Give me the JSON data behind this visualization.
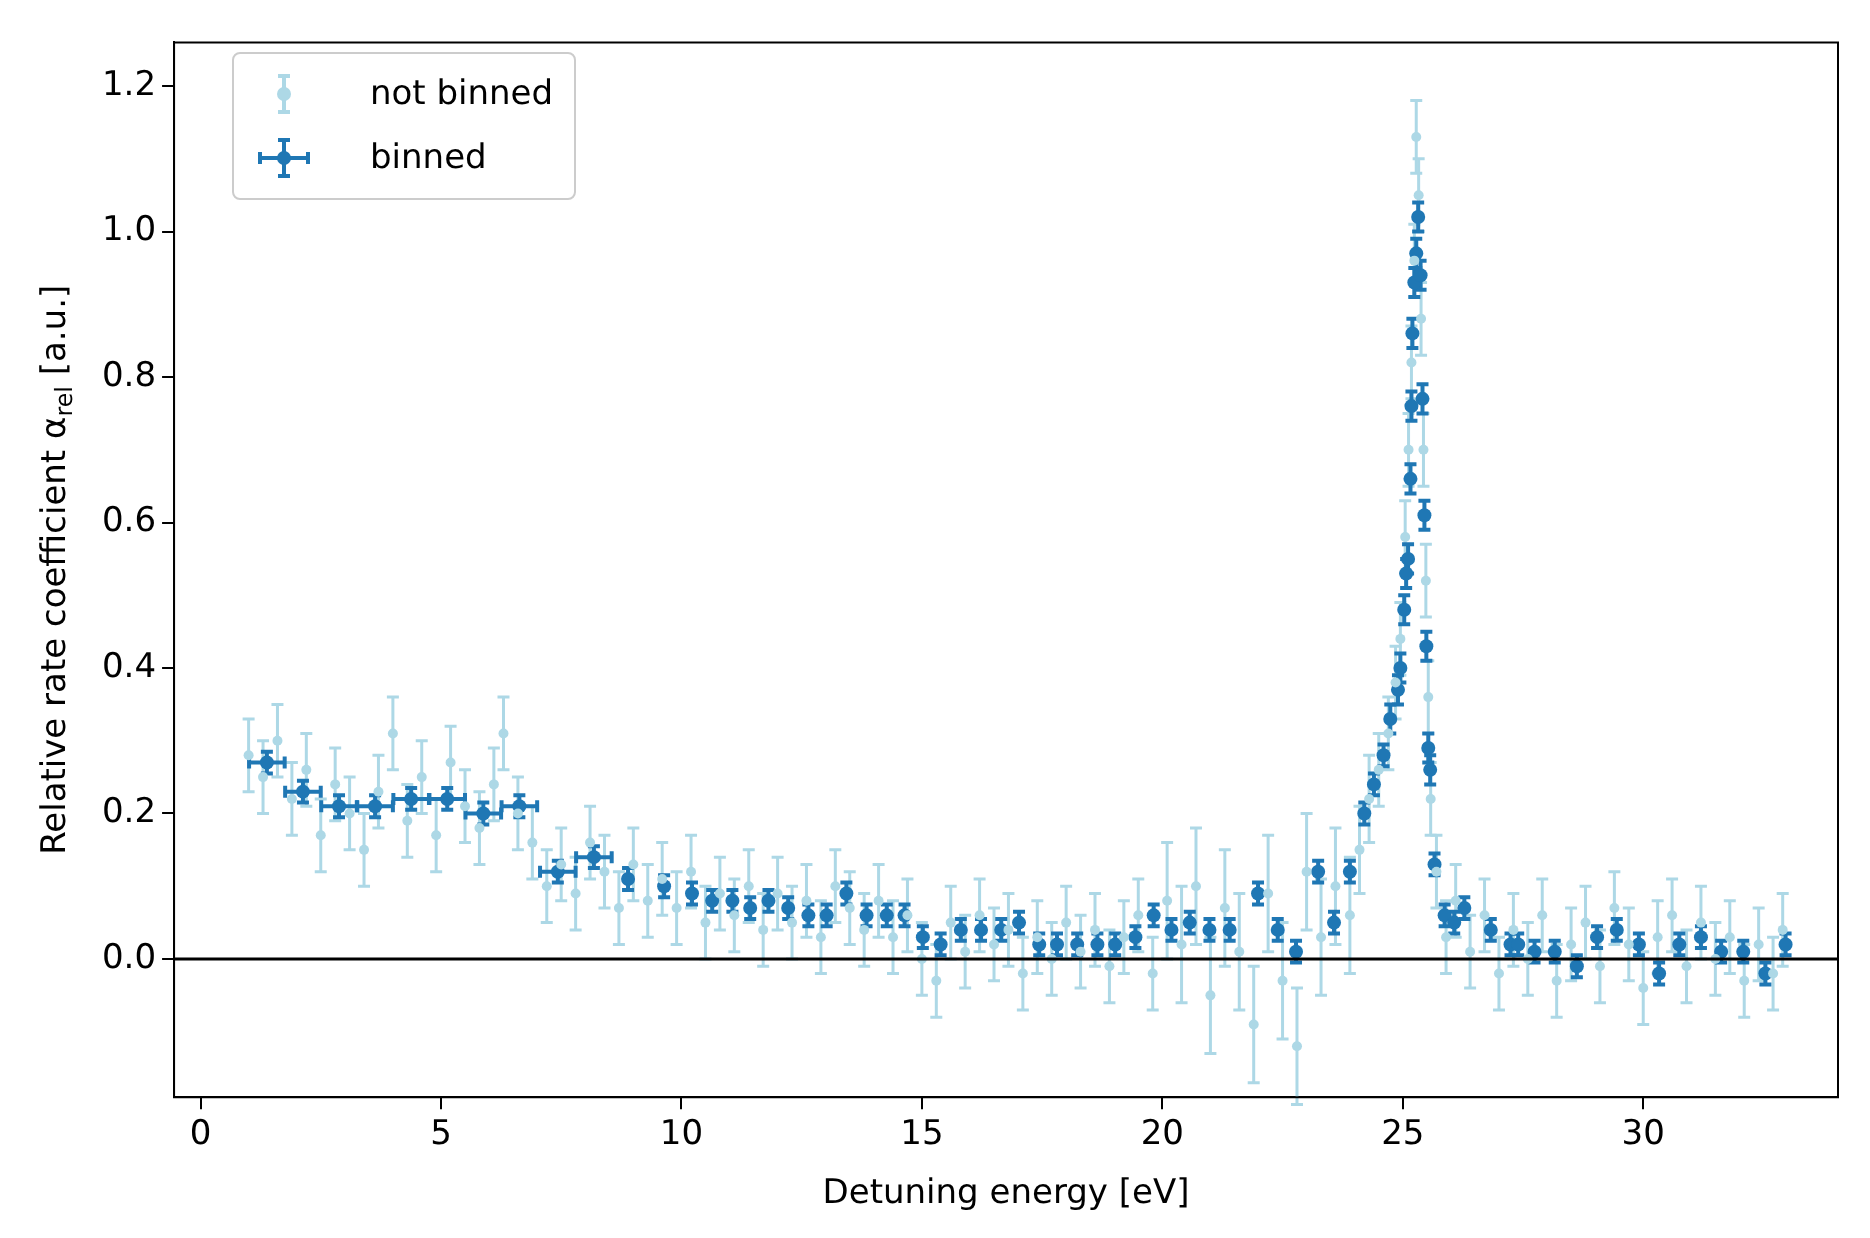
{
  "chart_data": {
    "type": "scatter",
    "xlabel": "Detuning energy [eV]",
    "ylabel": "Relative rate coefficient α$_{rel}$ [a.u.]",
    "xlim": [
      -0.55,
      34.05
    ],
    "ylim": [
      -0.19,
      1.26
    ],
    "xticks": [
      0,
      5,
      10,
      15,
      20,
      25,
      30
    ],
    "yticks": [
      {
        "value": 0,
        "label": "0.0"
      },
      {
        "value": 0.2,
        "label": "0.2"
      },
      {
        "value": 0.4,
        "label": "0.4"
      },
      {
        "value": 0.6,
        "label": "0.6"
      },
      {
        "value": 0.8,
        "label": "0.8"
      },
      {
        "value": 1.0,
        "label": "1.0"
      },
      {
        "value": 1.2,
        "label": "1.2"
      }
    ],
    "grid": false,
    "legend": "top left",
    "marker": "circle",
    "ref_lines": [
      {
        "axis": "y",
        "value": 0,
        "color": "#000000"
      }
    ],
    "series": [
      {
        "name": "not binned",
        "color": "#add8e6",
        "x": [
          1.0,
          1.3,
          1.6,
          1.9,
          2.2,
          2.5,
          2.8,
          3.1,
          3.4,
          3.7,
          4.0,
          4.3,
          4.6,
          4.9,
          5.2,
          5.5,
          5.8,
          6.1,
          6.3,
          6.6,
          6.9,
          7.2,
          7.5,
          7.8,
          8.1,
          8.4,
          8.7,
          9.0,
          9.3,
          9.6,
          9.9,
          10.2,
          10.5,
          10.8,
          11.1,
          11.4,
          11.7,
          12.0,
          12.3,
          12.6,
          12.9,
          13.2,
          13.5,
          13.8,
          14.1,
          14.4,
          14.7,
          15.0,
          15.3,
          15.6,
          15.9,
          16.2,
          16.5,
          16.8,
          17.1,
          17.4,
          17.7,
          18.0,
          18.3,
          18.6,
          18.9,
          19.2,
          19.5,
          19.8,
          20.1,
          20.4,
          20.7,
          21.0,
          21.3,
          21.6,
          21.9,
          22.2,
          22.5,
          22.8,
          23.0,
          23.3,
          23.6,
          23.9,
          24.1,
          24.3,
          24.5,
          24.7,
          24.85,
          24.95,
          25.05,
          25.12,
          25.18,
          25.24,
          25.28,
          25.33,
          25.38,
          25.43,
          25.48,
          25.53,
          25.58,
          25.7,
          25.9,
          26.1,
          26.4,
          26.7,
          27.0,
          27.3,
          27.6,
          27.9,
          28.2,
          28.5,
          28.8,
          29.1,
          29.4,
          29.7,
          30.0,
          30.3,
          30.6,
          30.9,
          31.2,
          31.5,
          31.8,
          32.1,
          32.4,
          32.7,
          32.9
        ],
        "values": [
          0.28,
          0.25,
          0.3,
          0.22,
          0.26,
          0.17,
          0.24,
          0.2,
          0.15,
          0.23,
          0.31,
          0.19,
          0.25,
          0.17,
          0.27,
          0.21,
          0.18,
          0.24,
          0.31,
          0.2,
          0.16,
          0.1,
          0.13,
          0.09,
          0.16,
          0.12,
          0.07,
          0.13,
          0.08,
          0.11,
          0.07,
          0.12,
          0.05,
          0.09,
          0.06,
          0.1,
          0.04,
          0.09,
          0.05,
          0.08,
          0.03,
          0.1,
          0.07,
          0.04,
          0.08,
          0.03,
          0.06,
          0.0,
          -0.03,
          0.05,
          0.01,
          0.06,
          0.02,
          0.04,
          -0.02,
          0.03,
          0.0,
          0.05,
          0.01,
          0.04,
          -0.01,
          0.03,
          0.06,
          -0.02,
          0.08,
          0.02,
          0.1,
          -0.05,
          0.07,
          0.01,
          -0.09,
          0.09,
          -0.03,
          -0.12,
          0.12,
          0.03,
          0.1,
          0.06,
          0.15,
          0.22,
          0.26,
          0.31,
          0.38,
          0.44,
          0.58,
          0.7,
          0.82,
          0.96,
          1.13,
          1.05,
          0.88,
          0.7,
          0.52,
          0.36,
          0.22,
          0.12,
          0.03,
          0.08,
          0.01,
          0.06,
          -0.02,
          0.04,
          0.0,
          0.06,
          -0.03,
          0.02,
          0.05,
          -0.01,
          0.07,
          0.02,
          -0.04,
          0.03,
          0.06,
          -0.01,
          0.05,
          0.0,
          0.03,
          -0.03,
          0.02,
          -0.02,
          0.04
        ],
        "errors": [
          0.05,
          0.05,
          0.05,
          0.05,
          0.05,
          0.05,
          0.05,
          0.05,
          0.05,
          0.05,
          0.05,
          0.05,
          0.05,
          0.05,
          0.05,
          0.05,
          0.05,
          0.05,
          0.05,
          0.05,
          0.05,
          0.05,
          0.05,
          0.05,
          0.05,
          0.05,
          0.05,
          0.05,
          0.05,
          0.05,
          0.05,
          0.05,
          0.05,
          0.05,
          0.05,
          0.05,
          0.05,
          0.05,
          0.05,
          0.05,
          0.05,
          0.05,
          0.05,
          0.05,
          0.05,
          0.05,
          0.05,
          0.05,
          0.05,
          0.05,
          0.05,
          0.05,
          0.05,
          0.05,
          0.05,
          0.05,
          0.05,
          0.05,
          0.05,
          0.05,
          0.05,
          0.05,
          0.05,
          0.05,
          0.08,
          0.08,
          0.08,
          0.08,
          0.08,
          0.08,
          0.08,
          0.08,
          0.08,
          0.08,
          0.08,
          0.08,
          0.08,
          0.08,
          0.06,
          0.06,
          0.05,
          0.05,
          0.05,
          0.05,
          0.05,
          0.05,
          0.05,
          0.05,
          0.05,
          0.05,
          0.05,
          0.05,
          0.05,
          0.05,
          0.05,
          0.05,
          0.05,
          0.05,
          0.05,
          0.05,
          0.05,
          0.05,
          0.05,
          0.05,
          0.05,
          0.05,
          0.05,
          0.05,
          0.05,
          0.05,
          0.05,
          0.05,
          0.05,
          0.05,
          0.05,
          0.05,
          0.05,
          0.05,
          0.05,
          0.05,
          0.05
        ]
      },
      {
        "name": "binned",
        "color": "#1f77b4",
        "x": [
          1.38,
          2.13,
          2.88,
          3.63,
          4.38,
          5.13,
          5.88,
          6.63,
          7.43,
          8.18,
          8.89,
          9.64,
          10.22,
          10.64,
          11.06,
          11.43,
          11.81,
          12.22,
          12.64,
          13.02,
          13.43,
          13.85,
          14.27,
          14.64,
          15.02,
          15.39,
          15.81,
          16.23,
          16.65,
          17.02,
          17.44,
          17.81,
          18.23,
          18.65,
          19.02,
          19.44,
          19.82,
          20.19,
          20.57,
          20.98,
          21.4,
          21.99,
          22.4,
          22.78,
          23.24,
          23.57,
          23.9,
          24.2,
          24.4,
          24.6,
          24.74,
          24.9,
          24.95,
          25.03,
          25.07,
          25.11,
          25.16,
          25.18,
          25.2,
          25.24,
          25.28,
          25.32,
          25.37,
          25.41,
          25.45,
          25.49,
          25.53,
          25.57,
          25.66,
          25.87,
          26.07,
          26.28,
          26.83,
          27.24,
          27.4,
          27.74,
          28.16,
          28.62,
          29.04,
          29.45,
          29.91,
          30.33,
          30.75,
          31.2,
          31.62,
          32.08,
          32.54,
          32.96
        ],
        "values": [
          0.27,
          0.23,
          0.21,
          0.21,
          0.22,
          0.22,
          0.2,
          0.21,
          0.12,
          0.14,
          0.11,
          0.1,
          0.09,
          0.08,
          0.08,
          0.07,
          0.08,
          0.07,
          0.06,
          0.06,
          0.09,
          0.06,
          0.06,
          0.06,
          0.03,
          0.02,
          0.04,
          0.04,
          0.04,
          0.05,
          0.02,
          0.02,
          0.02,
          0.02,
          0.02,
          0.03,
          0.06,
          0.04,
          0.05,
          0.04,
          0.04,
          0.09,
          0.04,
          0.01,
          0.12,
          0.05,
          0.12,
          0.2,
          0.24,
          0.28,
          0.33,
          0.37,
          0.4,
          0.48,
          0.53,
          0.55,
          0.66,
          0.76,
          0.86,
          0.93,
          0.97,
          1.02,
          0.94,
          0.77,
          0.61,
          0.43,
          0.29,
          0.26,
          0.13,
          0.06,
          0.05,
          0.07,
          0.04,
          0.02,
          0.02,
          0.01,
          0.01,
          -0.01,
          0.03,
          0.04,
          0.02,
          -0.02,
          0.02,
          0.03,
          0.01,
          0.01,
          -0.02,
          0.02
        ],
        "errors": [
          0.015,
          0.015,
          0.015,
          0.015,
          0.015,
          0.015,
          0.015,
          0.015,
          0.015,
          0.015,
          0.015,
          0.015,
          0.015,
          0.015,
          0.015,
          0.015,
          0.015,
          0.015,
          0.015,
          0.015,
          0.015,
          0.015,
          0.015,
          0.015,
          0.015,
          0.015,
          0.015,
          0.015,
          0.015,
          0.015,
          0.015,
          0.015,
          0.015,
          0.015,
          0.015,
          0.015,
          0.015,
          0.015,
          0.015,
          0.015,
          0.015,
          0.015,
          0.015,
          0.015,
          0.015,
          0.015,
          0.015,
          0.015,
          0.015,
          0.015,
          0.02,
          0.02,
          0.02,
          0.02,
          0.02,
          0.02,
          0.02,
          0.02,
          0.02,
          0.02,
          0.02,
          0.02,
          0.02,
          0.02,
          0.02,
          0.02,
          0.02,
          0.02,
          0.015,
          0.015,
          0.015,
          0.015,
          0.015,
          0.015,
          0.015,
          0.015,
          0.015,
          0.015,
          0.015,
          0.015,
          0.015,
          0.015,
          0.015,
          0.015,
          0.015,
          0.015,
          0.015,
          0.015
        ],
        "xerrors": [
          0.37,
          0.37,
          0.37,
          0.37,
          0.37,
          0.37,
          0.37,
          0.37,
          0.37,
          0.37,
          null,
          null,
          null,
          null,
          null,
          null,
          null,
          null,
          null,
          null,
          null,
          null,
          null,
          null,
          null,
          null,
          null,
          null,
          null,
          null,
          null,
          null,
          null,
          null,
          null,
          null,
          null,
          null,
          null,
          null,
          null,
          null,
          null,
          null,
          null,
          null,
          null,
          null,
          null,
          null,
          null,
          null,
          null,
          null,
          null,
          null,
          null,
          null,
          null,
          null,
          null,
          null,
          null,
          null,
          null,
          null,
          null,
          null,
          null,
          null,
          null,
          null,
          null,
          null,
          null,
          null,
          null,
          null,
          null,
          null,
          null,
          null,
          null,
          null,
          null,
          null,
          null,
          null
        ]
      }
    ]
  }
}
